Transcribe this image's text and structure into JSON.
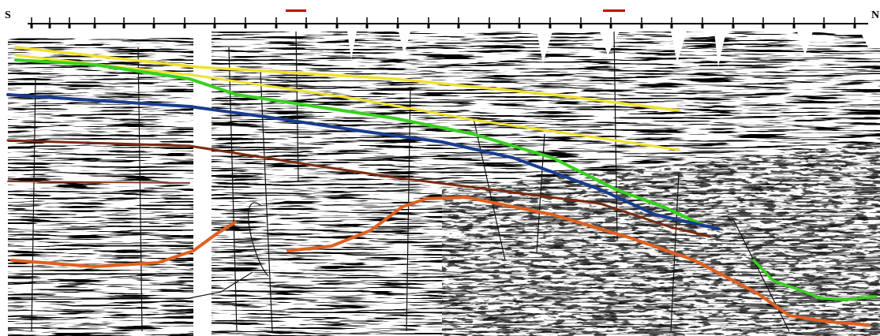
{
  "labels": {
    "south": "S",
    "north": "N"
  }
}
